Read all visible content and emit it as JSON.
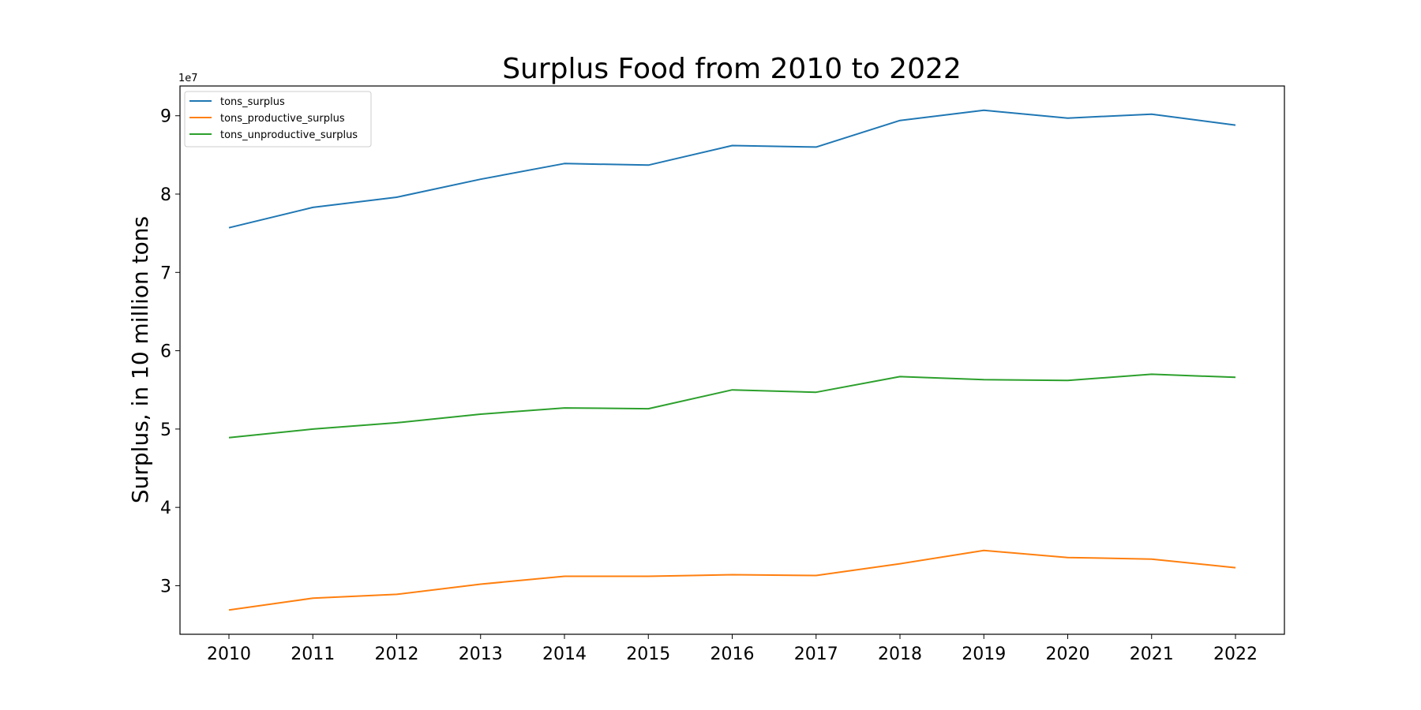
{
  "chart_data": {
    "type": "line",
    "title": "Surplus Food from 2010 to 2022",
    "xlabel": "",
    "ylabel": "Surplus, in 10 million tons",
    "y_offset_label": "1e7",
    "x": [
      2010,
      2011,
      2012,
      2013,
      2014,
      2015,
      2016,
      2017,
      2018,
      2019,
      2020,
      2021,
      2022
    ],
    "x_tick_labels": [
      "2010",
      "2011",
      "2012",
      "2013",
      "2014",
      "2015",
      "2016",
      "2017",
      "2018",
      "2019",
      "2020",
      "2021",
      "2022"
    ],
    "y_ticks": [
      3,
      4,
      5,
      6,
      7,
      8,
      9
    ],
    "y_tick_labels": [
      "3",
      "4",
      "5",
      "6",
      "7",
      "8",
      "9"
    ],
    "ylim": [
      2.38,
      9.38
    ],
    "grid": false,
    "legend_position": "top-left",
    "series": [
      {
        "name": "tons_surplus",
        "color": "#1f77b4",
        "values": [
          7.57,
          7.83,
          7.96,
          8.19,
          8.39,
          8.37,
          8.62,
          8.6,
          8.94,
          9.07,
          8.97,
          9.02,
          8.88
        ]
      },
      {
        "name": "tons_productive_surplus",
        "color": "#ff7f0e",
        "values": [
          2.69,
          2.84,
          2.89,
          3.02,
          3.12,
          3.12,
          3.14,
          3.13,
          3.28,
          3.45,
          3.36,
          3.34,
          3.23
        ]
      },
      {
        "name": "tons_unproductive_surplus",
        "color": "#2ca02c",
        "values": [
          4.89,
          5.0,
          5.08,
          5.19,
          5.27,
          5.26,
          5.5,
          5.47,
          5.67,
          5.63,
          5.62,
          5.7,
          5.66
        ]
      }
    ]
  }
}
